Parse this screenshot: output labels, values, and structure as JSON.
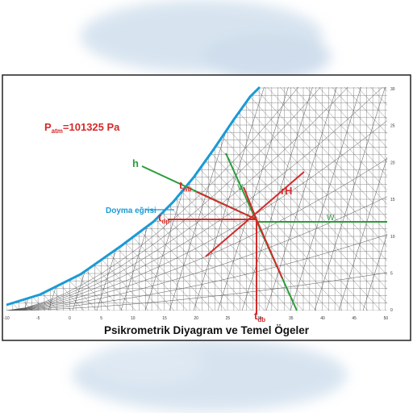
{
  "pressure": {
    "symbol": "P",
    "subscript": "atm",
    "text": "=101325 Pa"
  },
  "labels": {
    "h": "h",
    "twb": {
      "symbol": "t",
      "subscript": "wb"
    },
    "saturation": "Doyma eğrisi",
    "tdp": {
      "symbol": "t",
      "subscript": "dp"
    },
    "v": "V",
    "rh": "rH",
    "w": "W",
    "tdb": {
      "symbol": "t",
      "subscript": "db"
    }
  },
  "bottom_axis": [
    "-10",
    "-5",
    "0",
    "5",
    "10",
    "15",
    "20",
    "25",
    "30",
    "35",
    "40",
    "45",
    "50"
  ],
  "right_axis": [
    "30",
    "25",
    "20",
    "15",
    "10",
    "5",
    "0"
  ],
  "title": "Psikrometrik Diyagram ve Temel Ögeler"
}
